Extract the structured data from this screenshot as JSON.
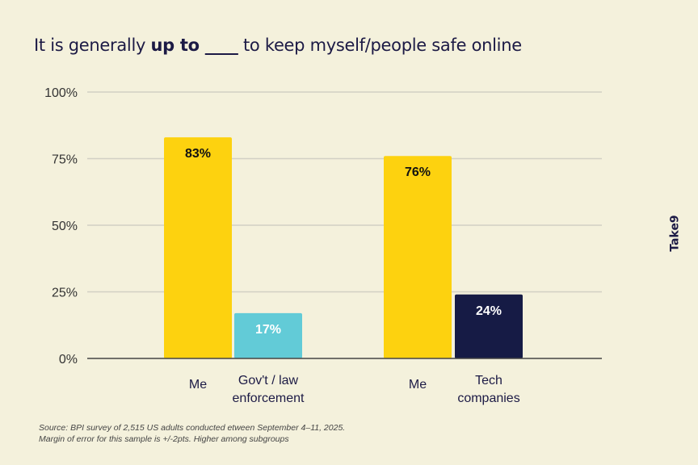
{
  "title": {
    "pre": "It is generally ",
    "bold": "up to ____",
    "post": " to keep myself/people safe online"
  },
  "logo": "Take9",
  "source": [
    "Source: BPI survey of 2,515 US adults conducted etween September 4–11, 2025.",
    "Margin of error for this sample is +/-2pts. Higher among subgroups"
  ],
  "chart_data": {
    "type": "bar",
    "title": "It is generally up to ____ to keep myself/people safe online",
    "ylim": [
      0,
      100
    ],
    "yticks": [
      "0%",
      "25%",
      "50%",
      "75%",
      "100%"
    ],
    "grid": true,
    "groups": [
      {
        "bars": [
          {
            "category": [
              "Me"
            ],
            "value": 83,
            "label": "83%",
            "color": "#fdd20f",
            "label_color": "#111111"
          },
          {
            "category": [
              "Gov't / law",
              "enforcement"
            ],
            "value": 17,
            "label": "17%",
            "color": "#62cbd7",
            "label_color": "#ffffff"
          }
        ]
      },
      {
        "bars": [
          {
            "category": [
              "Me"
            ],
            "value": 76,
            "label": "76%",
            "color": "#fdd20f",
            "label_color": "#111111"
          },
          {
            "category": [
              "Tech",
              "companies"
            ],
            "value": 24,
            "label": "24%",
            "color": "#161b45",
            "label_color": "#ffffff"
          }
        ]
      }
    ]
  }
}
